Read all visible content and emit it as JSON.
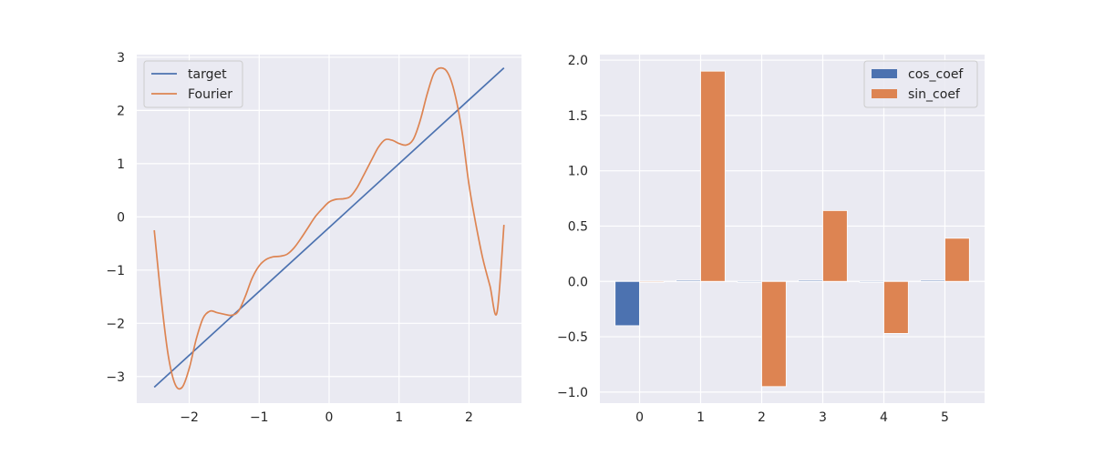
{
  "chart_data": [
    {
      "type": "line",
      "title": "",
      "xlabel": "",
      "ylabel": "",
      "xlim": [
        -2.75,
        2.75
      ],
      "ylim": [
        -3.5,
        3.05
      ],
      "xticks": [
        -2,
        -1,
        0,
        1,
        2
      ],
      "xtick_labels": [
        "−2",
        "−1",
        "0",
        "1",
        "2"
      ],
      "yticks": [
        -3,
        -2,
        -1,
        0,
        1,
        2,
        3
      ],
      "ytick_labels": [
        "−3",
        "−2",
        "−1",
        "0",
        "1",
        "2",
        "3"
      ],
      "grid": true,
      "legend_position": "upper-left",
      "series": [
        {
          "name": "target",
          "color": "#4c72b0",
          "x": [
            -2.5,
            2.5
          ],
          "y": [
            -3.2,
            2.8
          ]
        },
        {
          "name": "Fourier",
          "color": "#dd8452",
          "x": [
            -2.5,
            -2.4,
            -2.3,
            -2.2,
            -2.1,
            -2.0,
            -1.9,
            -1.8,
            -1.7,
            -1.6,
            -1.5,
            -1.4,
            -1.3,
            -1.2,
            -1.1,
            -1.0,
            -0.9,
            -0.8,
            -0.7,
            -0.6,
            -0.5,
            -0.4,
            -0.3,
            -0.2,
            -0.1,
            0.0,
            0.1,
            0.2,
            0.3,
            0.4,
            0.5,
            0.6,
            0.7,
            0.8,
            0.9,
            1.0,
            1.1,
            1.2,
            1.3,
            1.4,
            1.5,
            1.6,
            1.7,
            1.8,
            1.9,
            2.0,
            2.1,
            2.2,
            2.3,
            2.4,
            2.5
          ],
          "y": [
            -0.25,
            -1.55,
            -2.6,
            -3.15,
            -3.2,
            -2.85,
            -2.3,
            -1.9,
            -1.77,
            -1.8,
            -1.83,
            -1.85,
            -1.78,
            -1.5,
            -1.15,
            -0.92,
            -0.8,
            -0.75,
            -0.74,
            -0.7,
            -0.58,
            -0.4,
            -0.2,
            0.0,
            0.15,
            0.28,
            0.33,
            0.34,
            0.38,
            0.55,
            0.8,
            1.05,
            1.3,
            1.45,
            1.44,
            1.38,
            1.35,
            1.45,
            1.8,
            2.3,
            2.7,
            2.8,
            2.7,
            2.3,
            1.6,
            0.6,
            -0.15,
            -0.8,
            -1.3,
            -1.8,
            -0.15
          ]
        }
      ]
    },
    {
      "type": "bar",
      "title": "",
      "xlabel": "",
      "ylabel": "",
      "xlim": [
        -0.65,
        5.65
      ],
      "ylim": [
        -1.1,
        2.05
      ],
      "categories": [
        "0",
        "1",
        "2",
        "3",
        "4",
        "5"
      ],
      "yticks": [
        -1.0,
        -0.5,
        0.0,
        0.5,
        1.0,
        1.5,
        2.0
      ],
      "ytick_labels": [
        "−1.0",
        "−0.5",
        "0.0",
        "0.5",
        "1.0",
        "1.5",
        "2.0"
      ],
      "grid": true,
      "legend_position": "upper-right",
      "series": [
        {
          "name": "cos_coef",
          "color": "#4c72b0",
          "values": [
            -0.4,
            0.01,
            -0.005,
            0.01,
            -0.005,
            0.01
          ]
        },
        {
          "name": "sin_coef",
          "color": "#dd8452",
          "values": [
            0.0,
            1.9,
            -0.95,
            0.64,
            -0.47,
            0.39
          ]
        }
      ]
    }
  ]
}
